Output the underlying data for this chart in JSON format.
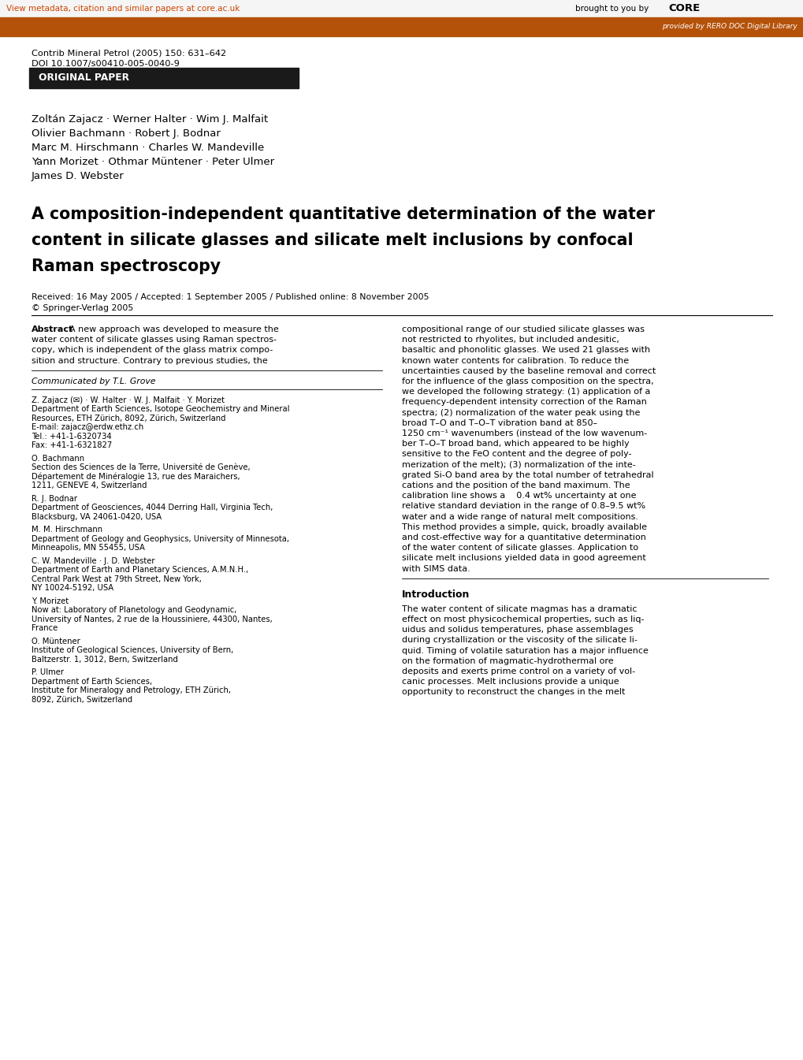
{
  "bg_color": "#ffffff",
  "top_bar_color": "#b5520a",
  "top_link_text": "View metadata, citation and similar papers at core.ac.uk",
  "top_link_color": "#cc4400",
  "core_brought": "brought to you by  ",
  "core_word": "CORE",
  "core_subtext": "provided by RERO DOC Digital Library",
  "journal_line1": "Contrib Mineral Petrol (2005) 150: 631–642",
  "journal_line2": "DOI 10.1007/s00410-005-0040-9",
  "orig_paper_label": "ORIGINAL PAPER",
  "orig_paper_bg": "#1a1a1a",
  "orig_paper_text_color": "#ffffff",
  "authors_line1": "Zoltán Zajacz · Werner Halter · Wim J. Malfait",
  "authors_line2": "Olivier Bachmann · Robert J. Bodnar",
  "authors_line3": "Marc M. Hirschmann · Charles W. Mandeville",
  "authors_line4": "Yann Morizet · Othmar Müntener · Peter Ulmer",
  "authors_line5": "James D. Webster",
  "paper_title_line1": "A composition-independent quantitative determination of the water",
  "paper_title_line2": "content in silicate glasses and silicate melt inclusions by confocal",
  "paper_title_line3": "Raman spectroscopy",
  "received_text": "Received: 16 May 2005 / Accepted: 1 September 2005 / Published online: 8 November 2005",
  "copyright_text": "© Springer-Verlag 2005",
  "abstract_label": "Abstract",
  "abstract_left_lines": [
    "A new approach was developed to measure the",
    "water content of silicate glasses using Raman spectros-",
    "copy, which is independent of the glass matrix compo-",
    "sition and structure. Contrary to previous studies, the"
  ],
  "abstract_right_lines": [
    "compositional range of our studied silicate glasses was",
    "not restricted to rhyolites, but included andesitic,",
    "basaltic and phonolitic glasses. We used 21 glasses with",
    "known water contents for calibration. To reduce the",
    "uncertainties caused by the baseline removal and correct",
    "for the influence of the glass composition on the spectra,",
    "we developed the following strategy: (1) application of a",
    "frequency-dependent intensity correction of the Raman",
    "spectra; (2) normalization of the water peak using the",
    "broad T–O and T–O–T vibration band at 850–",
    "1250 cm⁻¹ wavenumbers (instead of the low wavenum-",
    "ber T–O–T broad band, which appeared to be highly",
    "sensitive to the FeO content and the degree of poly-",
    "merization of the melt); (3) normalization of the inte-",
    "grated Si-O band area by the total number of tetrahedral",
    "cations and the position of the band maximum. The",
    "calibration line shows a    0.4 wt% uncertainty at one",
    "relative standard deviation in the range of 0.8–9.5 wt%",
    "water and a wide range of natural melt compositions.",
    "This method provides a simple, quick, broadly available",
    "and cost-effective way for a quantitative determination",
    "of the water content of silicate glasses. Application to",
    "silicate melt inclusions yielded data in good agreement",
    "with SIMS data."
  ],
  "communicated_text": "Communicated by T.L. Grove",
  "footnote_zajacz_lines": [
    "Z. Zajacz (✉) · W. Halter · W. J. Malfait · Y. Morizet",
    "Department of Earth Sciences, Isotope Geochemistry and Mineral",
    "Resources, ETH Zürich, 8092, Zürich, Switzerland",
    "E-mail: zajacz@erdw.ethz.ch",
    "Tel.: +41-1-6320734",
    "Fax: +41-1-6321827"
  ],
  "footnote_bachmann_lines": [
    "O. Bachmann",
    "Section des Sciences de la Terre, Université de Genève,",
    "Département de Minéralogie 13, rue des Maraichers,",
    "1211, GENEVE 4, Switzerland"
  ],
  "footnote_bodnar_lines": [
    "R. J. Bodnar",
    "Department of Geosciences, 4044 Derring Hall, Virginia Tech,",
    "Blacksburg, VA 24061-0420, USA"
  ],
  "footnote_hirschmann_lines": [
    "M. M. Hirschmann",
    "Department of Geology and Geophysics, University of Minnesota,",
    "Minneapolis, MN 55455, USA"
  ],
  "footnote_mandeville_lines": [
    "C. W. Mandeville · J. D. Webster",
    "Department of Earth and Planetary Sciences, A.M.N.H.,",
    "Central Park West at 79th Street, New York,",
    "NY 10024-5192, USA"
  ],
  "footnote_morizet_lines": [
    "Y. Morizet",
    "Now at: Laboratory of Planetology and Geodynamic,",
    "University of Nantes, 2 rue de la Houssiniere, 44300, Nantes,",
    "France"
  ],
  "footnote_muntener_lines": [
    "O. Müntener",
    "Institute of Geological Sciences, University of Bern,",
    "Baltzerstr. 1, 3012, Bern, Switzerland"
  ],
  "footnote_ulmer_lines": [
    "P. Ulmer",
    "Department of Earth Sciences,",
    "Institute for Mineralogy and Petrology, ETH Zürich,",
    "8092, Zürich, Switzerland"
  ],
  "introduction_title": "Introduction",
  "introduction_lines": [
    "The water content of silicate magmas has a dramatic",
    "effect on most physicochemical properties, such as liq-",
    "uidus and solidus temperatures, phase assemblages",
    "during crystallization or the viscosity of the silicate li-",
    "quid. Timing of volatile saturation has a major influence",
    "on the formation of magmatic-hydrothermal ore",
    "deposits and exerts prime control on a variety of vol-",
    "canic processes. Melt inclusions provide a unique",
    "opportunity to reconstruct the changes in the melt"
  ]
}
